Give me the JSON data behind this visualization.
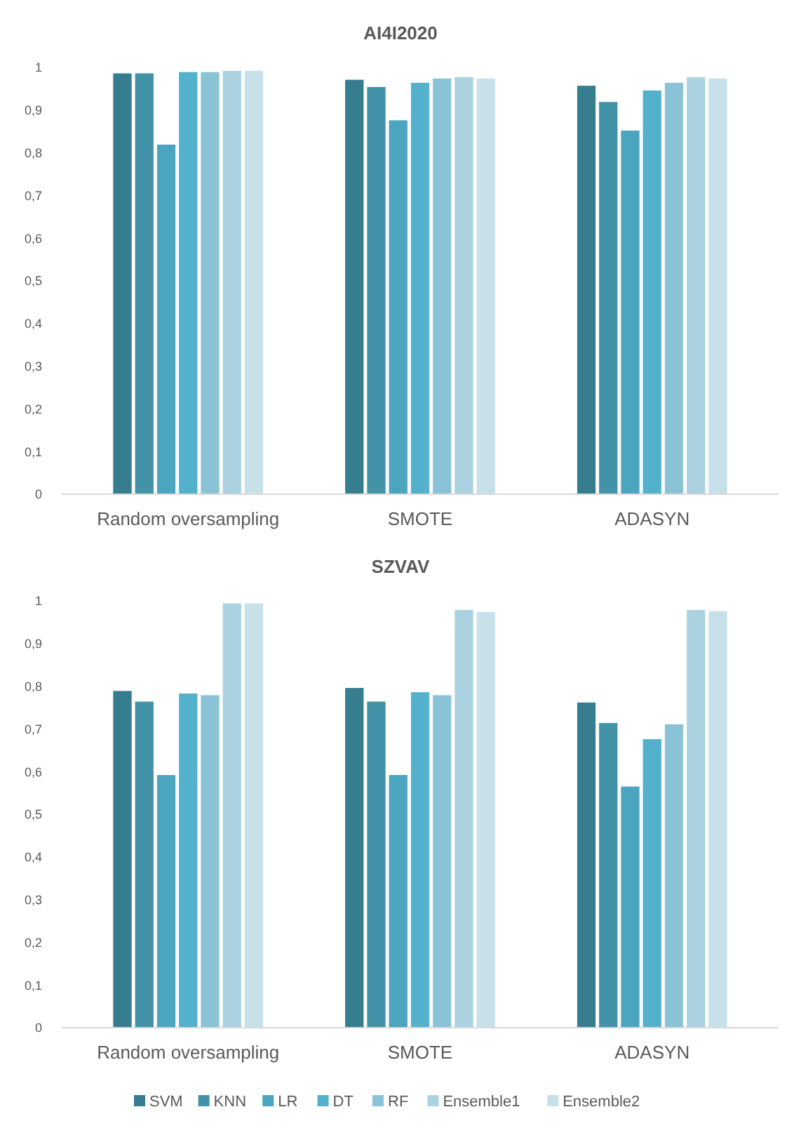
{
  "chart_data": [
    {
      "type": "bar",
      "title": "AI4I2020",
      "categories": [
        "Random oversampling",
        "SMOTE",
        "ADASYN"
      ],
      "ylim": [
        0,
        1
      ],
      "yticks": [
        {
          "value": 0,
          "label": "0"
        },
        {
          "value": 0.1,
          "label": "0,1"
        },
        {
          "value": 0.2,
          "label": "0,2"
        },
        {
          "value": 0.3,
          "label": "0,3"
        },
        {
          "value": 0.4,
          "label": "0,4"
        },
        {
          "value": 0.5,
          "label": "0,5"
        },
        {
          "value": 0.6,
          "label": "0,6"
        },
        {
          "value": 0.7,
          "label": "0,7"
        },
        {
          "value": 0.8,
          "label": "0,8"
        },
        {
          "value": 0.9,
          "label": "0,9"
        },
        {
          "value": 1,
          "label": "1"
        }
      ],
      "series": [
        {
          "color": "#367d8f",
          "values": [
            0.987,
            0.972,
            0.958
          ]
        },
        {
          "color": "#4292a8",
          "values": [
            0.987,
            0.955,
            0.92
          ]
        },
        {
          "color": "#4ba5bf",
          "values": [
            0.82,
            0.877,
            0.853
          ]
        },
        {
          "color": "#53b1cc",
          "values": [
            0.99,
            0.965,
            0.947
          ]
        },
        {
          "color": "#8ac3d6",
          "values": [
            0.99,
            0.975,
            0.965
          ]
        },
        {
          "color": "#abd2e0",
          "values": [
            0.993,
            0.978,
            0.978
          ]
        },
        {
          "color": "#c7e0ea",
          "values": [
            0.993,
            0.975,
            0.975
          ]
        }
      ]
    },
    {
      "type": "bar",
      "title": "SZVAV",
      "categories": [
        "Random oversampling",
        "SMOTE",
        "ADASYN"
      ],
      "ylim": [
        0,
        1
      ],
      "yticks": [
        {
          "value": 0,
          "label": "0"
        },
        {
          "value": 0.1,
          "label": "0,1"
        },
        {
          "value": 0.2,
          "label": "0,2"
        },
        {
          "value": 0.3,
          "label": "0,3"
        },
        {
          "value": 0.4,
          "label": "0,4"
        },
        {
          "value": 0.5,
          "label": "0,5"
        },
        {
          "value": 0.6,
          "label": "0,6"
        },
        {
          "value": 0.7,
          "label": "0,7"
        },
        {
          "value": 0.8,
          "label": "0,8"
        },
        {
          "value": 0.9,
          "label": "0,9"
        },
        {
          "value": 1,
          "label": "1"
        }
      ],
      "legend": "bottom",
      "series": [
        {
          "name": "SVM",
          "color": "#367d8f",
          "values": [
            0.79,
            0.797,
            0.763
          ]
        },
        {
          "name": "KNN",
          "color": "#4292a8",
          "values": [
            0.765,
            0.765,
            0.715
          ]
        },
        {
          "name": "LR",
          "color": "#4ba5bf",
          "values": [
            0.593,
            0.593,
            0.566
          ]
        },
        {
          "name": "DT",
          "color": "#53b1cc",
          "values": [
            0.784,
            0.787,
            0.677
          ]
        },
        {
          "name": "RF",
          "color": "#8ac3d6",
          "values": [
            0.78,
            0.78,
            0.712
          ]
        },
        {
          "name": "Ensemble1",
          "color": "#abd2e0",
          "values": [
            0.995,
            0.98,
            0.98
          ]
        },
        {
          "name": "Ensemble2",
          "color": "#c7e0ea",
          "values": [
            0.995,
            0.975,
            0.977
          ]
        }
      ]
    }
  ]
}
